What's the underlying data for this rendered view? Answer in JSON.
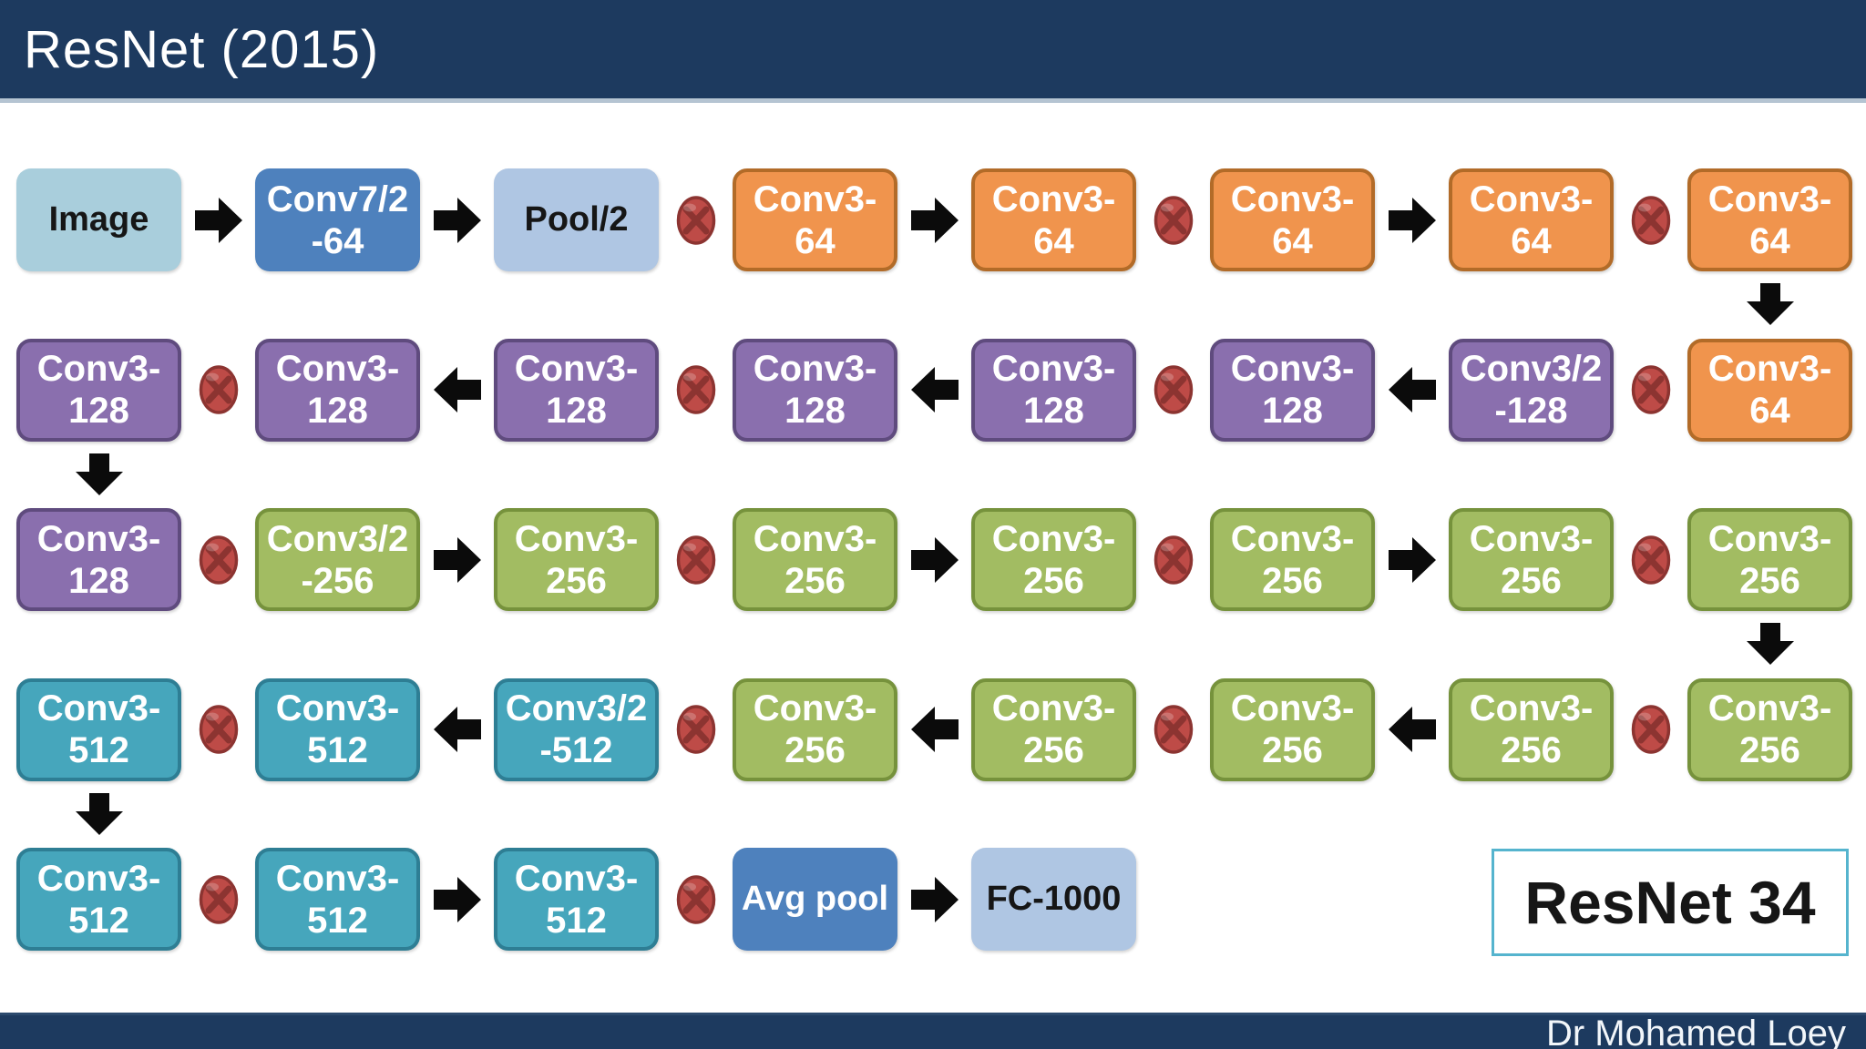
{
  "header": {
    "title": "ResNet (2015)"
  },
  "footer": {
    "credit": "Dr Mohamed Loey"
  },
  "badge": {
    "label": "ResNet 34"
  },
  "colors": {
    "navy": "#1D3A5F",
    "header_strip": "#B5C4D2",
    "arrow_black": "#0B0B0B",
    "merge_fill": "#BE4B47",
    "merge_dark": "#8C3431",
    "badge_border": "#55B4CE"
  },
  "palette": {
    "image": {
      "fill": "#A9CEDC",
      "text": "#161616"
    },
    "pale": {
      "fill": "#AFC6E3",
      "text": "#161616"
    },
    "blue": {
      "fill": "#4E81BD",
      "text": "#FFFFFF"
    },
    "orange": {
      "fill": "#F0944D",
      "border": "#B26B28",
      "text": "#FFFFFF"
    },
    "purple": {
      "fill": "#8A6FAE",
      "border": "#5F4B7E",
      "text": "#FFFFFF"
    },
    "green": {
      "fill": "#A2BC62",
      "border": "#76923C",
      "text": "#FFFFFF"
    },
    "teal": {
      "fill": "#46A6BC",
      "border": "#2E7E94",
      "text": "#FFFFFF"
    }
  },
  "diagram": {
    "rows": [
      {
        "cells": [
          {
            "t": "box",
            "style": "image",
            "lines": [
              "Image"
            ]
          },
          {
            "t": "arrow",
            "dir": "right"
          },
          {
            "t": "box",
            "style": "blue",
            "lines": [
              "Conv7/2",
              "-64"
            ]
          },
          {
            "t": "arrow",
            "dir": "right"
          },
          {
            "t": "box",
            "style": "pale",
            "lines": [
              "Pool/2"
            ]
          },
          {
            "t": "otimes"
          },
          {
            "t": "box",
            "style": "orange",
            "lines": [
              "Conv3-",
              "64"
            ]
          },
          {
            "t": "arrow",
            "dir": "right"
          },
          {
            "t": "box",
            "style": "orange",
            "lines": [
              "Conv3-",
              "64"
            ]
          },
          {
            "t": "otimes"
          },
          {
            "t": "box",
            "style": "orange",
            "lines": [
              "Conv3-",
              "64"
            ]
          },
          {
            "t": "arrow",
            "dir": "right"
          },
          {
            "t": "box",
            "style": "orange",
            "lines": [
              "Conv3-",
              "64"
            ]
          },
          {
            "t": "otimes"
          },
          {
            "t": "box",
            "style": "orange",
            "lines": [
              "Conv3-",
              "64"
            ]
          }
        ]
      },
      {
        "cells": [
          {
            "t": "box",
            "style": "purple",
            "lines": [
              "Conv3-",
              "128"
            ]
          },
          {
            "t": "otimes"
          },
          {
            "t": "box",
            "style": "purple",
            "lines": [
              "Conv3-",
              "128"
            ]
          },
          {
            "t": "arrow",
            "dir": "left"
          },
          {
            "t": "box",
            "style": "purple",
            "lines": [
              "Conv3-",
              "128"
            ]
          },
          {
            "t": "otimes"
          },
          {
            "t": "box",
            "style": "purple",
            "lines": [
              "Conv3-",
              "128"
            ]
          },
          {
            "t": "arrow",
            "dir": "left"
          },
          {
            "t": "box",
            "style": "purple",
            "lines": [
              "Conv3-",
              "128"
            ]
          },
          {
            "t": "otimes"
          },
          {
            "t": "box",
            "style": "purple",
            "lines": [
              "Conv3-",
              "128"
            ]
          },
          {
            "t": "arrow",
            "dir": "left"
          },
          {
            "t": "box",
            "style": "purple",
            "lines": [
              "Conv3/2",
              "-128"
            ]
          },
          {
            "t": "otimes"
          },
          {
            "t": "box",
            "style": "orange",
            "lines": [
              "Conv3-",
              "64"
            ]
          }
        ]
      },
      {
        "cells": [
          {
            "t": "box",
            "style": "purple",
            "lines": [
              "Conv3-",
              "128"
            ]
          },
          {
            "t": "otimes"
          },
          {
            "t": "box",
            "style": "green",
            "lines": [
              "Conv3/2",
              "-256"
            ]
          },
          {
            "t": "arrow",
            "dir": "right"
          },
          {
            "t": "box",
            "style": "green",
            "lines": [
              "Conv3-",
              "256"
            ]
          },
          {
            "t": "otimes"
          },
          {
            "t": "box",
            "style": "green",
            "lines": [
              "Conv3-",
              "256"
            ]
          },
          {
            "t": "arrow",
            "dir": "right"
          },
          {
            "t": "box",
            "style": "green",
            "lines": [
              "Conv3-",
              "256"
            ]
          },
          {
            "t": "otimes"
          },
          {
            "t": "box",
            "style": "green",
            "lines": [
              "Conv3-",
              "256"
            ]
          },
          {
            "t": "arrow",
            "dir": "right"
          },
          {
            "t": "box",
            "style": "green",
            "lines": [
              "Conv3-",
              "256"
            ]
          },
          {
            "t": "otimes"
          },
          {
            "t": "box",
            "style": "green",
            "lines": [
              "Conv3-",
              "256"
            ]
          }
        ]
      },
      {
        "cells": [
          {
            "t": "box",
            "style": "teal",
            "lines": [
              "Conv3-",
              "512"
            ]
          },
          {
            "t": "otimes"
          },
          {
            "t": "box",
            "style": "teal",
            "lines": [
              "Conv3-",
              "512"
            ]
          },
          {
            "t": "arrow",
            "dir": "left"
          },
          {
            "t": "box",
            "style": "teal",
            "lines": [
              "Conv3/2",
              "-512"
            ]
          },
          {
            "t": "otimes"
          },
          {
            "t": "box",
            "style": "green",
            "lines": [
              "Conv3-",
              "256"
            ]
          },
          {
            "t": "arrow",
            "dir": "left"
          },
          {
            "t": "box",
            "style": "green",
            "lines": [
              "Conv3-",
              "256"
            ]
          },
          {
            "t": "otimes"
          },
          {
            "t": "box",
            "style": "green",
            "lines": [
              "Conv3-",
              "256"
            ]
          },
          {
            "t": "arrow",
            "dir": "left"
          },
          {
            "t": "box",
            "style": "green",
            "lines": [
              "Conv3-",
              "256"
            ]
          },
          {
            "t": "otimes"
          },
          {
            "t": "box",
            "style": "green",
            "lines": [
              "Conv3-",
              "256"
            ]
          }
        ]
      },
      {
        "cells": [
          {
            "t": "box",
            "style": "teal",
            "lines": [
              "Conv3-",
              "512"
            ]
          },
          {
            "t": "otimes"
          },
          {
            "t": "box",
            "style": "teal",
            "lines": [
              "Conv3-",
              "512"
            ]
          },
          {
            "t": "arrow",
            "dir": "right"
          },
          {
            "t": "box",
            "style": "teal",
            "lines": [
              "Conv3-",
              "512"
            ]
          },
          {
            "t": "otimes"
          },
          {
            "t": "box",
            "style": "blue",
            "lines": [
              "Avg pool"
            ]
          },
          {
            "t": "arrow",
            "dir": "right"
          },
          {
            "t": "box",
            "style": "pale",
            "lines": [
              "FC-1000"
            ]
          }
        ]
      },
      {
        "cells": []
      }
    ],
    "connectors": [
      {
        "from_row": 0,
        "col": 7,
        "dir": "down"
      },
      {
        "from_row": 1,
        "col": 0,
        "dir": "down"
      },
      {
        "from_row": 2,
        "col": 7,
        "dir": "down"
      },
      {
        "from_row": 3,
        "col": 0,
        "dir": "down"
      }
    ]
  }
}
